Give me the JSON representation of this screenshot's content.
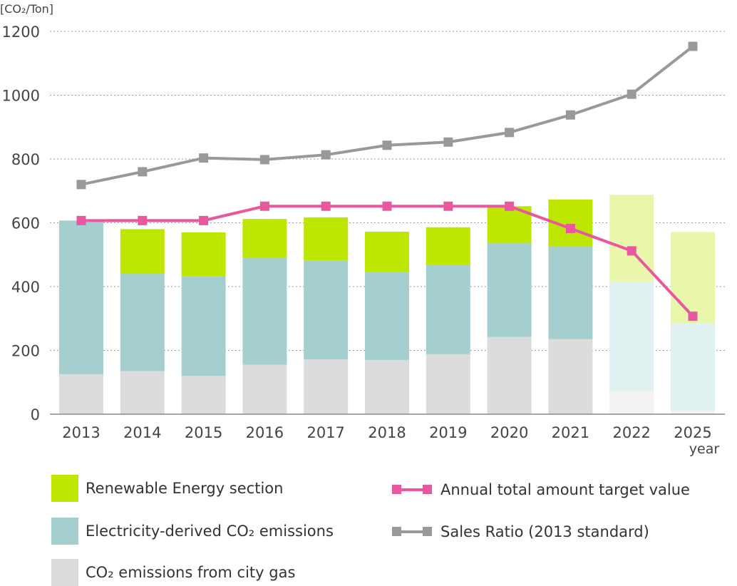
{
  "chart_data": {
    "type": "bar",
    "stacked": true,
    "unit_label": "[CO₂/Ton]",
    "x_suffix": "year",
    "categories": [
      "2013",
      "2014",
      "2015",
      "2016",
      "2017",
      "2018",
      "2019",
      "2020",
      "2021",
      "2022",
      "2025"
    ],
    "projected_categories": [
      "2022",
      "2025"
    ],
    "ylim": [
      0,
      1200
    ],
    "yticks": [
      0,
      200,
      400,
      600,
      800,
      1000,
      1200
    ],
    "grid": true,
    "series": [
      {
        "name": "CO₂ emissions from city gas",
        "kind": "bar",
        "color": "#dcdcdc",
        "color_projected": "#f2f2f2",
        "values": [
          125,
          135,
          120,
          155,
          172,
          170,
          188,
          242,
          235,
          72,
          12
        ]
      },
      {
        "name": "Electricity-derived CO₂ emissions",
        "kind": "bar",
        "color": "#a5cfcf",
        "color_projected": "#e1f0f0",
        "values": [
          482,
          305,
          313,
          335,
          310,
          276,
          280,
          295,
          290,
          343,
          273
        ]
      },
      {
        "name": "Renewable Energy section",
        "kind": "bar",
        "color": "#bde600",
        "color_projected": "#e9f7ad",
        "values": [
          0,
          140,
          137,
          122,
          135,
          126,
          118,
          115,
          148,
          273,
          286
        ]
      },
      {
        "name": "Annual total amount target value",
        "kind": "line",
        "color": "#e9579e",
        "values": [
          607,
          607,
          607,
          652,
          652,
          652,
          652,
          652,
          582,
          512,
          307
        ]
      },
      {
        "name": "Sales Ratio (2013 standard)",
        "kind": "line",
        "color": "#999999",
        "values": [
          720,
          760,
          803,
          798,
          813,
          843,
          853,
          883,
          938,
          1003,
          1153
        ]
      }
    ]
  },
  "legend": {
    "renewable": "Renewable Energy section",
    "electricity": "Electricity-derived CO₂ emissions",
    "citygas": "CO₂ emissions from city gas",
    "target": "Annual total amount target value",
    "sales": "Sales Ratio (2013 standard)"
  }
}
